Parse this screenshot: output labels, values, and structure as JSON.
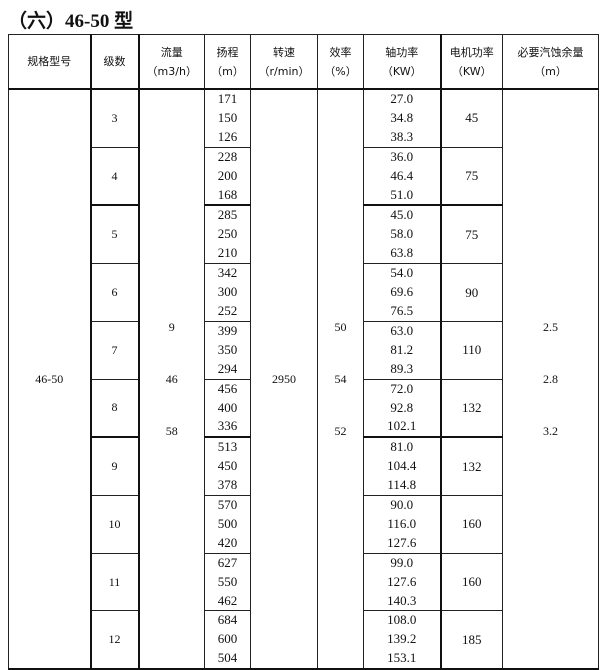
{
  "title": "（六）46-50 型",
  "headers": [
    {
      "l1": "规格型号",
      "l2": ""
    },
    {
      "l1": "级数",
      "l2": ""
    },
    {
      "l1": "流量",
      "l2": "（m3/h）"
    },
    {
      "l1": "扬程",
      "l2": "（m）"
    },
    {
      "l1": "转速",
      "l2": "（r/min）"
    },
    {
      "l1": "效率",
      "l2": "（%）"
    },
    {
      "l1": "轴功率",
      "l2": "（KW）"
    },
    {
      "l1": "电机功率",
      "l2": "（KW）"
    },
    {
      "l1": "必要汽蚀余量",
      "l2": "（m）"
    }
  ],
  "model": "46-50",
  "flow": [
    "9",
    "46",
    "58"
  ],
  "speed": "2950",
  "efficiency": [
    "50",
    "54",
    "52"
  ],
  "npsh": [
    "2.5",
    "2.8",
    "3.2"
  ],
  "rows": [
    {
      "stages": "3",
      "head": [
        "171",
        "150",
        "126"
      ],
      "shaft": [
        "27.0",
        "34.8",
        "38.3"
      ],
      "motor": "45"
    },
    {
      "stages": "4",
      "head": [
        "228",
        "200",
        "168"
      ],
      "shaft": [
        "36.0",
        "46.4",
        "51.0"
      ],
      "motor": "75"
    },
    {
      "stages": "5",
      "head": [
        "285",
        "250",
        "210"
      ],
      "shaft": [
        "45.0",
        "58.0",
        "63.8"
      ],
      "motor": "75"
    },
    {
      "stages": "6",
      "head": [
        "342",
        "300",
        "252"
      ],
      "shaft": [
        "54.0",
        "69.6",
        "76.5"
      ],
      "motor": "90"
    },
    {
      "stages": "7",
      "head": [
        "399",
        "350",
        "294"
      ],
      "shaft": [
        "63.0",
        "81.2",
        "89.3"
      ],
      "motor": "110"
    },
    {
      "stages": "8",
      "head": [
        "456",
        "400",
        "336"
      ],
      "shaft": [
        "72.0",
        "92.8",
        "102.1"
      ],
      "motor": "132"
    },
    {
      "stages": "9",
      "head": [
        "513",
        "450",
        "378"
      ],
      "shaft": [
        "81.0",
        "104.4",
        "114.8"
      ],
      "motor": "132"
    },
    {
      "stages": "10",
      "head": [
        "570",
        "500",
        "420"
      ],
      "shaft": [
        "90.0",
        "116.0",
        "127.6"
      ],
      "motor": "160"
    },
    {
      "stages": "11",
      "head": [
        "627",
        "550",
        "462"
      ],
      "shaft": [
        "99.0",
        "127.6",
        "140.3"
      ],
      "motor": "160"
    },
    {
      "stages": "12",
      "head": [
        "684",
        "600",
        "504"
      ],
      "shaft": [
        "108.0",
        "139.2",
        "153.1"
      ],
      "motor": "185"
    }
  ]
}
